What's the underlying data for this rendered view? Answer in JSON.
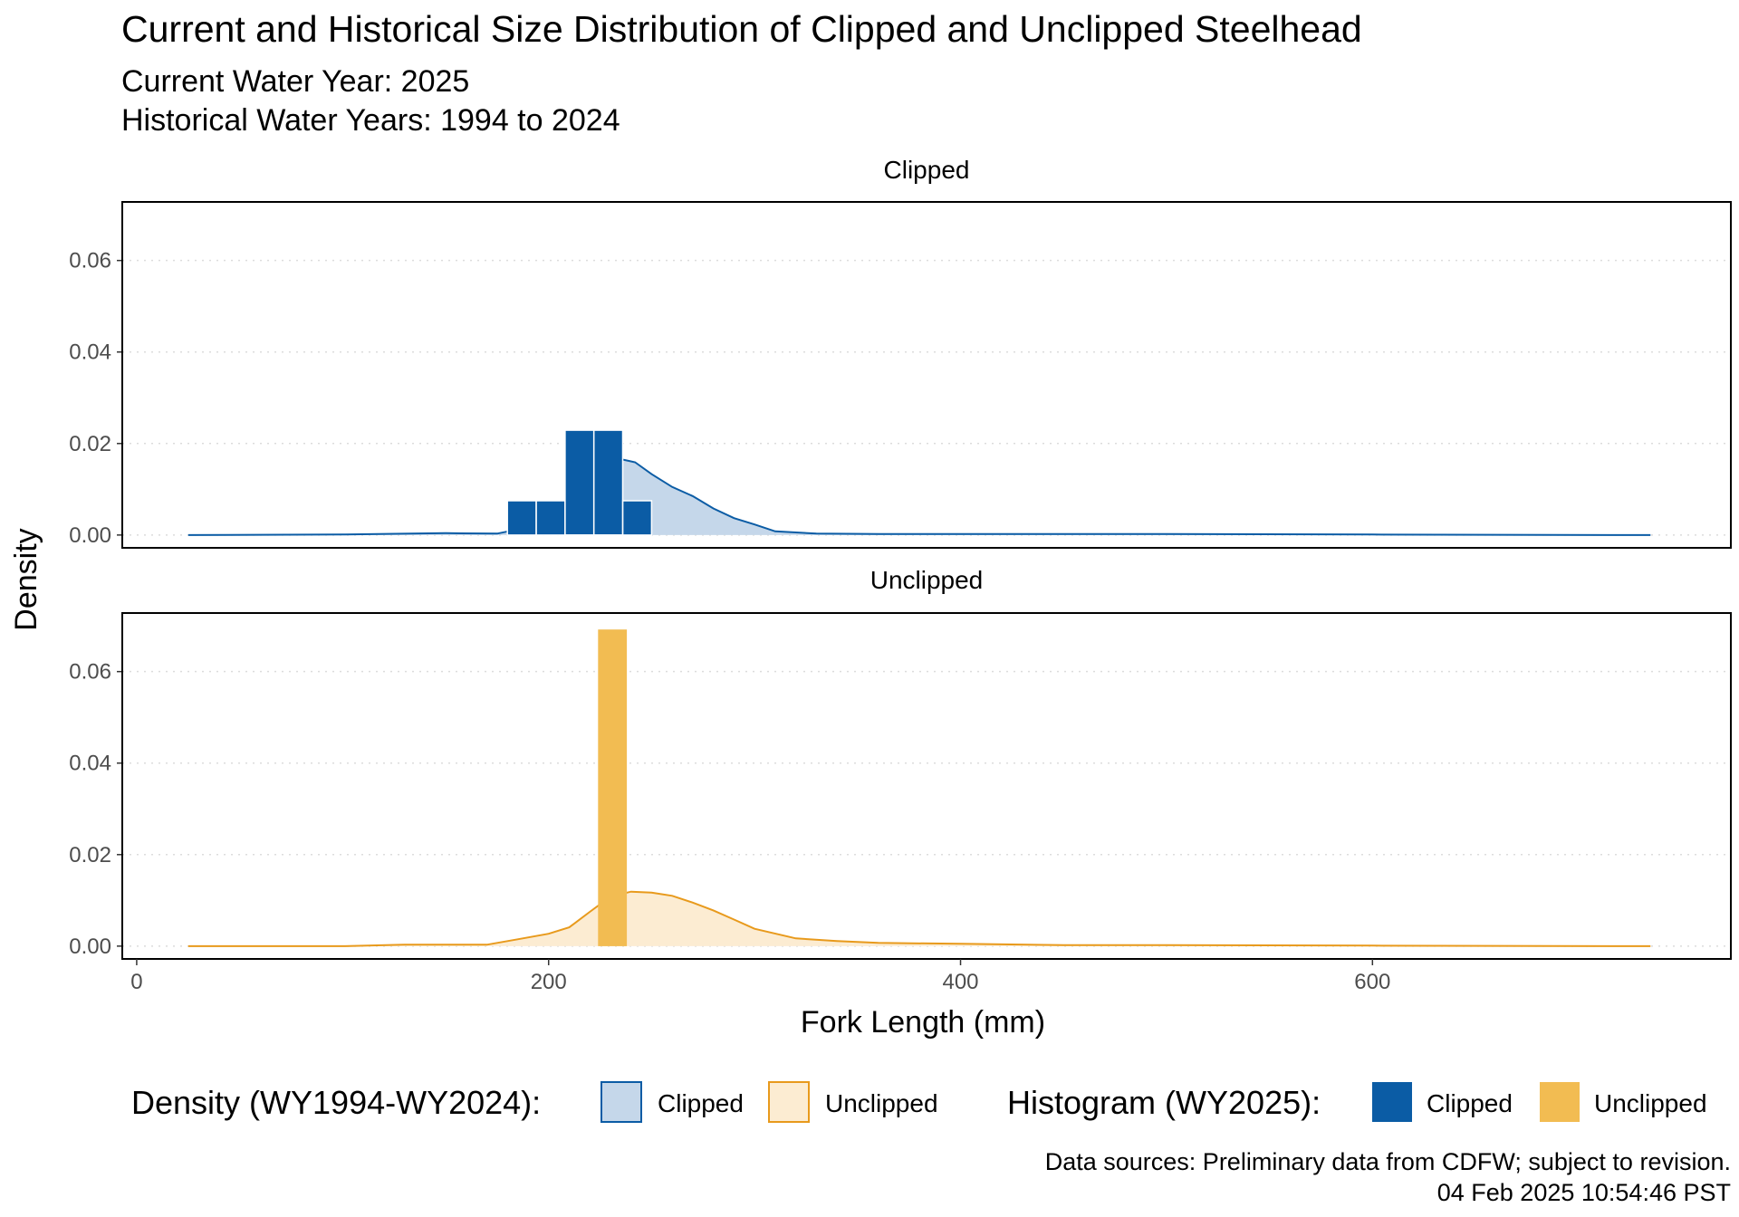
{
  "chart_data": {
    "type": "histogram+density",
    "title": "Current and Historical Size Distribution of Clipped and Unclipped Steelhead",
    "subtitle_lines": [
      "Current Water Year: 2025",
      "Historical Water Years: 1994 to 2024"
    ],
    "xlabel": "Fork Length (mm)",
    "ylabel": "Density",
    "xlim": [
      -7,
      774
    ],
    "ylim": [
      -0.0028,
      0.0728
    ],
    "x_ticks": [
      0,
      200,
      400,
      600
    ],
    "y_ticks": [
      0.0,
      0.02,
      0.04,
      0.06
    ],
    "y_tick_labels": [
      "0.00",
      "0.02",
      "0.04",
      "0.06"
    ],
    "grid": "horizontal-dotted",
    "colors": {
      "clipped_line": "#0b5ca5",
      "clipped_fill": "#c5d7ea",
      "clipped_bar": "#0b5ca5",
      "unclipped_line": "#e89a1c",
      "unclipped_fill": "#fcecd2",
      "unclipped_bar": "#f2bc52"
    },
    "panels": [
      {
        "strip_label": "Clipped",
        "density_x": [
          25,
          100,
          150,
          175,
          190,
          200,
          210,
          220,
          230,
          236,
          242,
          250,
          260,
          270,
          280,
          290,
          300,
          310,
          330,
          360,
          400,
          450,
          500,
          600,
          735
        ],
        "density_y": [
          0.0,
          0.0001,
          0.0004,
          0.0003,
          0.0017,
          0.004,
          0.008,
          0.0125,
          0.0155,
          0.0165,
          0.0159,
          0.0133,
          0.0105,
          0.0085,
          0.0058,
          0.0037,
          0.0023,
          0.0008,
          0.0003,
          0.0002,
          0.0002,
          0.0002,
          0.0002,
          0.0001,
          0.0
        ],
        "bars": [
          {
            "x0": 180,
            "x1": 194,
            "y": 0.0075
          },
          {
            "x0": 194,
            "x1": 208,
            "y": 0.0075
          },
          {
            "x0": 208,
            "x1": 222,
            "y": 0.0229
          },
          {
            "x0": 222,
            "x1": 236,
            "y": 0.0229
          },
          {
            "x0": 236,
            "x1": 250,
            "y": 0.0075
          }
        ]
      },
      {
        "strip_label": "Unclipped",
        "density_x": [
          25,
          100,
          130,
          170,
          185,
          200,
          210,
          220,
          230,
          240,
          250,
          260,
          270,
          280,
          290,
          300,
          320,
          340,
          360,
          400,
          450,
          500,
          600,
          735
        ],
        "density_y": [
          0.0,
          0.0,
          0.0003,
          0.0003,
          0.0015,
          0.0027,
          0.0041,
          0.0075,
          0.0108,
          0.0119,
          0.0117,
          0.011,
          0.0095,
          0.0078,
          0.0058,
          0.0038,
          0.0017,
          0.0011,
          0.0007,
          0.0005,
          0.0002,
          0.0002,
          0.0001,
          0.0
        ],
        "bars": [
          {
            "x0": 224,
            "x1": 238,
            "y": 0.0692
          }
        ]
      }
    ],
    "legend": {
      "position": "bottom",
      "density_title": "Density (WY1994-WY2024):",
      "density_items": [
        "Clipped",
        "Unclipped"
      ],
      "histogram_title": "Histogram (WY2025):",
      "histogram_items": [
        "Clipped",
        "Unclipped"
      ]
    },
    "caption_lines": [
      "Data sources: Preliminary data from CDFW; subject to revision.",
      "04 Feb 2025 10:54:46 PST"
    ]
  }
}
